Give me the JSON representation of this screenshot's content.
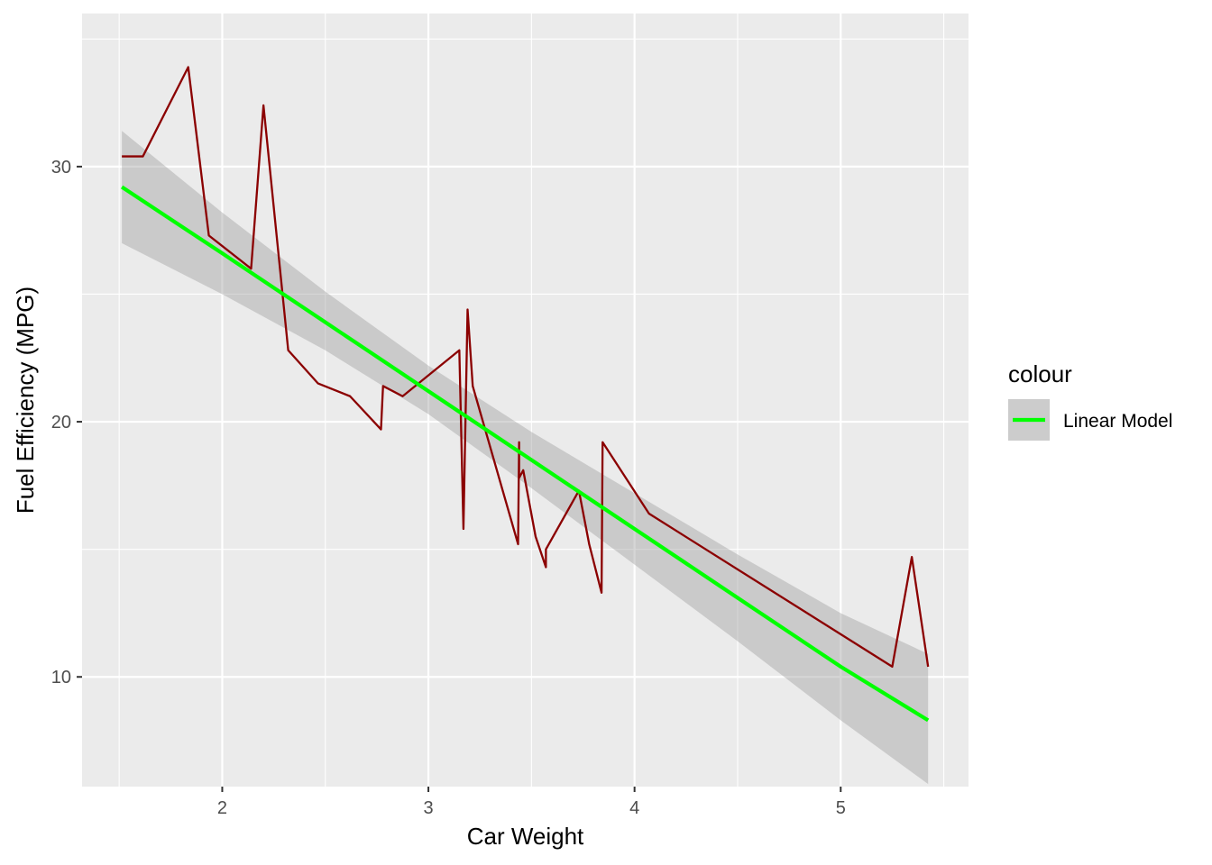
{
  "chart_data": {
    "type": "line",
    "title": "",
    "xlabel": "Car Weight",
    "ylabel": "Fuel Efficiency (MPG)",
    "xlim": [
      1.32,
      5.62
    ],
    "ylim": [
      5.7,
      36.0
    ],
    "x_ticks": [
      2,
      3,
      4,
      5
    ],
    "x_minor_ticks": [
      1.5,
      2.5,
      3.5,
      4.5,
      5.5
    ],
    "y_ticks": [
      10,
      20,
      30
    ],
    "y_minor_ticks": [
      5,
      15,
      25,
      35
    ],
    "x_tick_labels": [
      "2",
      "3",
      "4",
      "5"
    ],
    "y_tick_labels": [
      "10",
      "20",
      "30"
    ],
    "grid": true,
    "legend_position": "right",
    "legend_title": "colour",
    "series": [
      {
        "kind": "line",
        "color": "#8b0000",
        "x": [
          1.513,
          1.615,
          1.835,
          1.935,
          2.14,
          2.2,
          2.32,
          2.465,
          2.62,
          2.77,
          2.78,
          2.875,
          3.15,
          3.17,
          3.19,
          3.215,
          3.435,
          3.44,
          3.44,
          3.46,
          3.52,
          3.57,
          3.57,
          3.73,
          3.78,
          3.84,
          3.845,
          4.07,
          5.25,
          5.345,
          5.424
        ],
        "y": [
          30.4,
          30.4,
          33.9,
          27.3,
          26.0,
          32.4,
          22.8,
          21.5,
          21.0,
          19.7,
          21.4,
          21.0,
          22.8,
          15.8,
          24.4,
          21.4,
          15.2,
          19.2,
          17.8,
          18.1,
          15.5,
          14.3,
          15.0,
          17.3,
          15.2,
          13.3,
          19.2,
          16.4,
          10.4,
          14.7,
          10.4
        ]
      },
      {
        "kind": "smooth",
        "name": "Linear Model",
        "color": "#00ff00",
        "ribbon_color": "#999999",
        "x": [
          1.513,
          2.0,
          2.5,
          3.0,
          3.5,
          4.0,
          4.5,
          5.0,
          5.424
        ],
        "y": [
          29.2,
          26.6,
          23.9,
          21.2,
          18.5,
          15.8,
          13.1,
          10.4,
          8.3
        ],
        "ymin": [
          27.0,
          25.0,
          22.8,
          20.3,
          17.4,
          14.4,
          11.4,
          8.3,
          5.8
        ],
        "ymax": [
          31.4,
          28.2,
          25.1,
          22.2,
          19.6,
          17.2,
          14.8,
          12.5,
          10.9
        ]
      }
    ]
  },
  "colors": {
    "panel_bg": "#ebebeb",
    "grid": "#ffffff",
    "line": "#8b0000",
    "fit": "#00ff00",
    "ribbon": "#999999"
  }
}
